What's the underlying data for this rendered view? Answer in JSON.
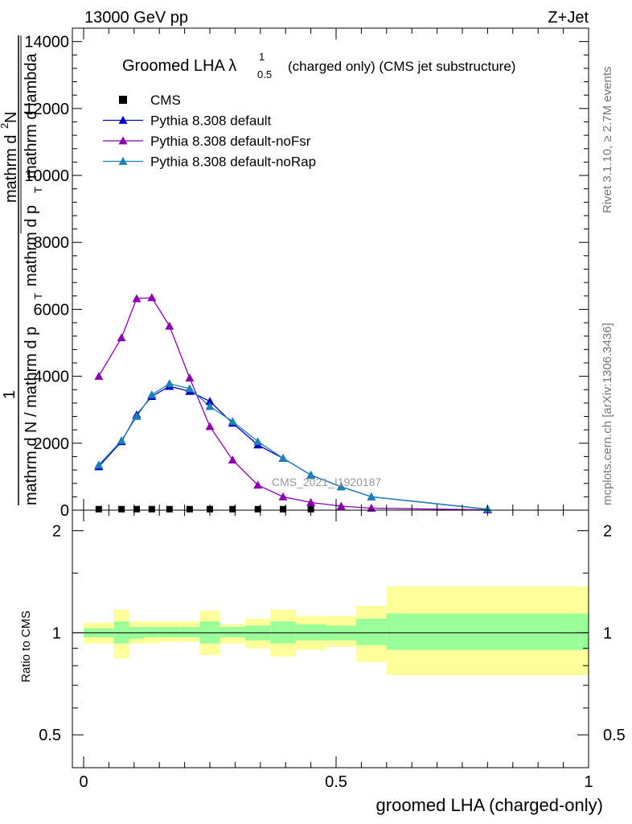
{
  "header": {
    "left": "13000 GeV pp",
    "right": "Z+Jet"
  },
  "side": {
    "rivet": "Rivet 3.1.10, ≥ 2.7M events",
    "mcplots": "mcplots.cern.ch [arXiv:1306.3436]"
  },
  "watermark": "CMS_2021_I1920187",
  "colors": {
    "cms": "#000000",
    "default": "#0000cc",
    "noFsr": "#8a00b0",
    "noRap": "#1a82b5",
    "band_inner": "#99ff99",
    "band_outer": "#ffff99"
  },
  "chart_data": [
    {
      "type": "line",
      "title": "Groomed LHA λ",
      "title_sup": "1",
      "title_sub": "0.5",
      "title_suffix": "(charged only) (CMS jet substructure)",
      "ylabel_parts": [
        "1",
        "mathrm d N / mathrm d p_T",
        "mathrm d^2N",
        "mathrm d p_T mathrm d lambda"
      ],
      "ylabel_display": {
        "one": "1",
        "den_main": "mathrm d N / mathrm d p",
        "den_sub": "T",
        "num": "mathrm d",
        "num_sup": "2",
        "num_tail": "N",
        "den2_main": "mathrm d p",
        "den2_sub": "T",
        "den2_tail": "mathrm d lambda"
      },
      "ylim": [
        0,
        14400
      ],
      "xlim": [
        0,
        1
      ],
      "yticks": [
        0,
        2000,
        4000,
        6000,
        8000,
        10000,
        12000,
        14000
      ],
      "ytick_labels": [
        "0",
        "2000",
        "4000",
        "6000",
        "8000",
        "10000",
        "12000",
        "14000"
      ],
      "legend_position": "top-left",
      "series": [
        {
          "name": "CMS",
          "marker": "square",
          "x": [
            0.03,
            0.075,
            0.105,
            0.135,
            0.17,
            0.21,
            0.25,
            0.295,
            0.345,
            0.395,
            0.45
          ],
          "y": [
            30,
            30,
            30,
            30,
            30,
            30,
            30,
            30,
            30,
            30,
            30
          ]
        },
        {
          "name": "Pythia 8.308 default",
          "marker": "triangle",
          "x": [
            0.03,
            0.075,
            0.105,
            0.135,
            0.17,
            0.21,
            0.25,
            0.295,
            0.345,
            0.395,
            0.45,
            0.51,
            0.57,
            0.8
          ],
          "y": [
            1300,
            2050,
            2850,
            3400,
            3700,
            3550,
            3250,
            2600,
            1950,
            1550,
            1050,
            700,
            400,
            30
          ]
        },
        {
          "name": "Pythia 8.308 default-noFsr",
          "marker": "triangle",
          "x": [
            0.03,
            0.075,
            0.105,
            0.135,
            0.17,
            0.21,
            0.25,
            0.295,
            0.345,
            0.395,
            0.45,
            0.51,
            0.57,
            0.8
          ],
          "y": [
            4000,
            5150,
            6320,
            6350,
            5500,
            3950,
            2500,
            1500,
            750,
            400,
            230,
            120,
            60,
            10
          ]
        },
        {
          "name": "Pythia 8.308 default-noRap",
          "marker": "triangle",
          "x": [
            0.03,
            0.075,
            0.105,
            0.135,
            0.17,
            0.21,
            0.25,
            0.295,
            0.345,
            0.395,
            0.45,
            0.51,
            0.57,
            0.8
          ],
          "y": [
            1350,
            2080,
            2800,
            3450,
            3780,
            3630,
            3100,
            2650,
            2050,
            1550,
            1050,
            700,
            400,
            30
          ]
        }
      ]
    },
    {
      "type": "area",
      "ylabel": "Ratio to CMS",
      "xlabel": "groomed LHA (charged-only)",
      "ylim": [
        0.4,
        2.3
      ],
      "xlim": [
        0,
        1
      ],
      "log_y": true,
      "yticks": [
        0.5,
        1,
        2
      ],
      "ytick_labels": [
        "0.5",
        "1",
        "2"
      ],
      "xticks": [
        0,
        0.5,
        1
      ],
      "xtick_labels": [
        "0",
        "0.5",
        "1"
      ],
      "bins": [
        {
          "x0": 0.0,
          "x1": 0.06,
          "inner": [
            0.97,
            1.03
          ],
          "outer": [
            0.93,
            1.07
          ]
        },
        {
          "x0": 0.06,
          "x1": 0.09,
          "inner": [
            0.93,
            1.08
          ],
          "outer": [
            0.84,
            1.17
          ]
        },
        {
          "x0": 0.09,
          "x1": 0.12,
          "inner": [
            0.96,
            1.04
          ],
          "outer": [
            0.93,
            1.08
          ]
        },
        {
          "x0": 0.12,
          "x1": 0.15,
          "inner": [
            0.97,
            1.04
          ],
          "outer": [
            0.93,
            1.08
          ]
        },
        {
          "x0": 0.15,
          "x1": 0.19,
          "inner": [
            0.97,
            1.04
          ],
          "outer": [
            0.94,
            1.08
          ]
        },
        {
          "x0": 0.19,
          "x1": 0.23,
          "inner": [
            0.97,
            1.04
          ],
          "outer": [
            0.94,
            1.08
          ]
        },
        {
          "x0": 0.23,
          "x1": 0.27,
          "inner": [
            0.93,
            1.08
          ],
          "outer": [
            0.86,
            1.16
          ]
        },
        {
          "x0": 0.27,
          "x1": 0.32,
          "inner": [
            0.97,
            1.04
          ],
          "outer": [
            0.93,
            1.06
          ]
        },
        {
          "x0": 0.32,
          "x1": 0.37,
          "inner": [
            0.95,
            1.05
          ],
          "outer": [
            0.9,
            1.1
          ]
        },
        {
          "x0": 0.37,
          "x1": 0.42,
          "inner": [
            0.93,
            1.08
          ],
          "outer": [
            0.85,
            1.17
          ]
        },
        {
          "x0": 0.42,
          "x1": 0.48,
          "inner": [
            0.95,
            1.06
          ],
          "outer": [
            0.89,
            1.12
          ]
        },
        {
          "x0": 0.48,
          "x1": 0.54,
          "inner": [
            0.95,
            1.05
          ],
          "outer": [
            0.91,
            1.12
          ]
        },
        {
          "x0": 0.54,
          "x1": 0.6,
          "inner": [
            0.92,
            1.1
          ],
          "outer": [
            0.82,
            1.2
          ]
        },
        {
          "x0": 0.6,
          "x1": 1.0,
          "inner": [
            0.89,
            1.14
          ],
          "outer": [
            0.75,
            1.37
          ]
        }
      ]
    }
  ]
}
